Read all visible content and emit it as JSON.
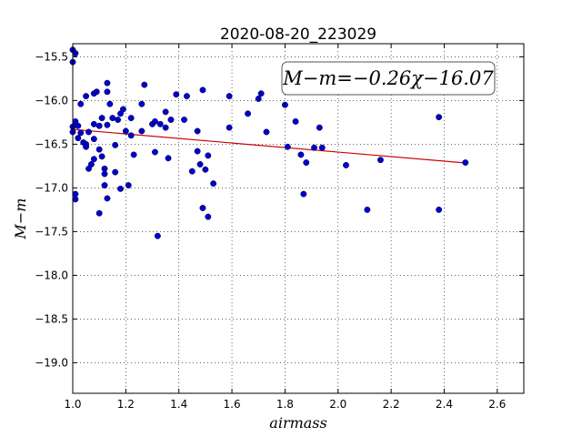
{
  "chart_data": {
    "type": "scatter",
    "title": "2020-08-20_223029",
    "xlabel": "airmass",
    "ylabel": "M−m",
    "annotation": "M−m=−0.26χ−16.07",
    "xlim": [
      1.0,
      2.7
    ],
    "ylim": [
      -19.35,
      -15.35
    ],
    "y_inverted": true,
    "grid": true,
    "x_ticks": [
      1.0,
      1.2,
      1.4,
      1.6,
      1.8,
      2.0,
      2.2,
      2.4,
      2.6
    ],
    "x_tick_labels": [
      "1.0",
      "1.2",
      "1.4",
      "1.6",
      "1.8",
      "2.0",
      "2.2",
      "2.4",
      "2.6"
    ],
    "y_ticks": [
      -15.5,
      -16.0,
      -16.5,
      -17.0,
      -17.5,
      -18.0,
      -18.5,
      -19.0
    ],
    "y_tick_labels": [
      "−15.5",
      "−16.0",
      "−16.5",
      "−17.0",
      "−17.5",
      "−18.0",
      "−18.5",
      "−19.0"
    ],
    "marker_color": "#0000cc",
    "fit_color": "#cc0000",
    "fit": {
      "slope": -0.26,
      "intercept": -16.07,
      "x_range": [
        1.0,
        2.48
      ]
    },
    "points": [
      [
        1.0,
        -15.42
      ],
      [
        1.0,
        -15.56
      ],
      [
        1.01,
        -15.46
      ],
      [
        1.0,
        -16.3
      ],
      [
        1.0,
        -16.36
      ],
      [
        1.01,
        -16.24
      ],
      [
        1.02,
        -16.29
      ],
      [
        1.02,
        -16.43
      ],
      [
        1.03,
        -16.37
      ],
      [
        1.04,
        -16.48
      ],
      [
        1.05,
        -16.5
      ],
      [
        1.05,
        -16.53
      ],
      [
        1.06,
        -16.36
      ],
      [
        1.06,
        -16.78
      ],
      [
        1.07,
        -16.73
      ],
      [
        1.08,
        -16.67
      ],
      [
        1.08,
        -16.44
      ],
      [
        1.03,
        -16.04
      ],
      [
        1.05,
        -15.95
      ],
      [
        1.08,
        -15.92
      ],
      [
        1.09,
        -15.9
      ],
      [
        1.08,
        -16.27
      ],
      [
        1.1,
        -16.29
      ],
      [
        1.1,
        -16.56
      ],
      [
        1.11,
        -16.64
      ],
      [
        1.12,
        -16.78
      ],
      [
        1.12,
        -16.84
      ],
      [
        1.12,
        -16.97
      ],
      [
        1.13,
        -17.12
      ],
      [
        1.1,
        -17.29
      ],
      [
        1.01,
        -17.07
      ],
      [
        1.01,
        -17.13
      ],
      [
        1.11,
        -16.2
      ],
      [
        1.13,
        -15.8
      ],
      [
        1.13,
        -15.9
      ],
      [
        1.14,
        -16.04
      ],
      [
        1.15,
        -16.2
      ],
      [
        1.13,
        -16.28
      ],
      [
        1.16,
        -16.51
      ],
      [
        1.16,
        -16.82
      ],
      [
        1.17,
        -16.22
      ],
      [
        1.18,
        -16.15
      ],
      [
        1.19,
        -16.1
      ],
      [
        1.2,
        -16.35
      ],
      [
        1.18,
        -17.01
      ],
      [
        1.21,
        -16.97
      ],
      [
        1.22,
        -16.2
      ],
      [
        1.22,
        -16.4
      ],
      [
        1.23,
        -16.62
      ],
      [
        1.26,
        -16.04
      ],
      [
        1.26,
        -16.35
      ],
      [
        1.27,
        -15.82
      ],
      [
        1.3,
        -16.27
      ],
      [
        1.31,
        -16.24
      ],
      [
        1.31,
        -16.59
      ],
      [
        1.33,
        -16.27
      ],
      [
        1.35,
        -16.31
      ],
      [
        1.35,
        -16.13
      ],
      [
        1.37,
        -16.22
      ],
      [
        1.36,
        -16.66
      ],
      [
        1.39,
        -15.93
      ],
      [
        1.42,
        -16.22
      ],
      [
        1.43,
        -15.95
      ],
      [
        1.47,
        -16.35
      ],
      [
        1.47,
        -16.58
      ],
      [
        1.45,
        -16.81
      ],
      [
        1.48,
        -16.73
      ],
      [
        1.5,
        -16.79
      ],
      [
        1.49,
        -15.88
      ],
      [
        1.51,
        -16.63
      ],
      [
        1.53,
        -16.95
      ],
      [
        1.49,
        -17.23
      ],
      [
        1.51,
        -17.33
      ],
      [
        1.32,
        -17.55
      ],
      [
        1.59,
        -16.31
      ],
      [
        1.59,
        -15.95
      ],
      [
        1.66,
        -16.15
      ],
      [
        1.7,
        -15.98
      ],
      [
        1.71,
        -15.92
      ],
      [
        1.73,
        -16.36
      ],
      [
        1.8,
        -16.05
      ],
      [
        1.81,
        -16.53
      ],
      [
        1.84,
        -16.24
      ],
      [
        1.86,
        -16.62
      ],
      [
        1.88,
        -16.71
      ],
      [
        1.87,
        -17.07
      ],
      [
        1.91,
        -16.54
      ],
      [
        1.93,
        -16.31
      ],
      [
        1.94,
        -16.54
      ],
      [
        2.03,
        -16.74
      ],
      [
        2.11,
        -17.25
      ],
      [
        2.16,
        -16.68
      ],
      [
        2.38,
        -16.19
      ],
      [
        2.38,
        -17.25
      ],
      [
        2.48,
        -16.71
      ]
    ]
  }
}
